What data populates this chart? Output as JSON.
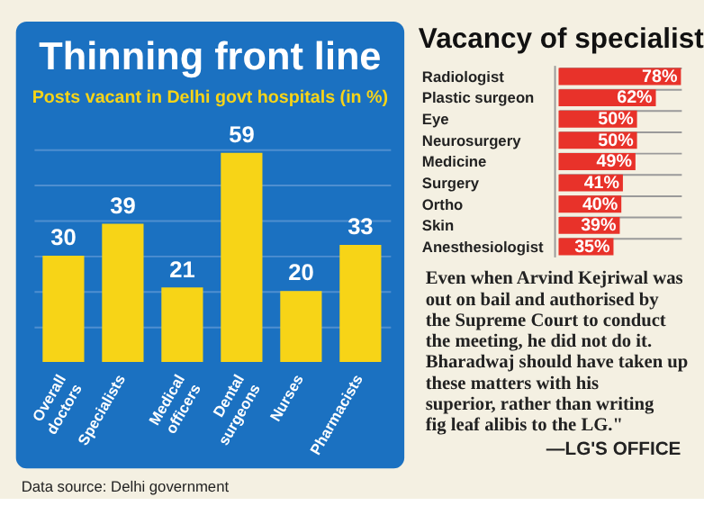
{
  "chart_data": [
    {
      "type": "bar",
      "title": "Thinning front line",
      "subtitle": "Posts vacant in Delhi govt hospitals (in %)",
      "categories": [
        "Overall doctors",
        "Specialists",
        "Medical officers",
        "Dental surgeons",
        "Nurses",
        "Pharmacists"
      ],
      "values": [
        30,
        39,
        21,
        59,
        20,
        33
      ],
      "color": "#f7d417",
      "data_labels": true,
      "ylim": [
        0,
        60
      ],
      "yticks": [
        {
          "value": 10,
          "label": null
        },
        {
          "value": 20,
          "label": null
        },
        {
          "value": 30,
          "label": null
        },
        {
          "value": 40,
          "label": null
        },
        {
          "value": 50,
          "label": null
        },
        {
          "value": 60,
          "label": null
        }
      ],
      "grid": "y",
      "tick_labels": "x",
      "annotations": [
        "Data source: Delhi government"
      ]
    },
    {
      "type": "bar",
      "orientation": "horizontal",
      "title": "Vacancy of specialist",
      "categories": [
        "Radiologist",
        "Plastic surgeon",
        "Eye",
        "Neurosurgery",
        "Medicine",
        "Surgery",
        "Ortho",
        "Skin",
        "Anesthesiologist"
      ],
      "values": [
        78,
        62,
        50,
        50,
        49,
        41,
        40,
        39,
        35
      ],
      "value_labels": [
        "78%",
        "62%",
        "50%",
        "50%",
        "49%",
        "41%",
        "40%",
        "39%",
        "35%"
      ],
      "color": "#e8322a",
      "xlim": [
        0,
        78
      ],
      "grid": "y",
      "tick_labels": "y"
    },
    {
      "type": "other",
      "annotations": [
        "Even when Arvind Kejriwal was out on bail and authorised by the Supreme Court to conduct the meeting, he did not do it. Bharadwaj should have taken up these matters with his superior, rather than writing fig leaf alibis to the LG.\"",
        "—LG'S OFFICE"
      ]
    }
  ]
}
